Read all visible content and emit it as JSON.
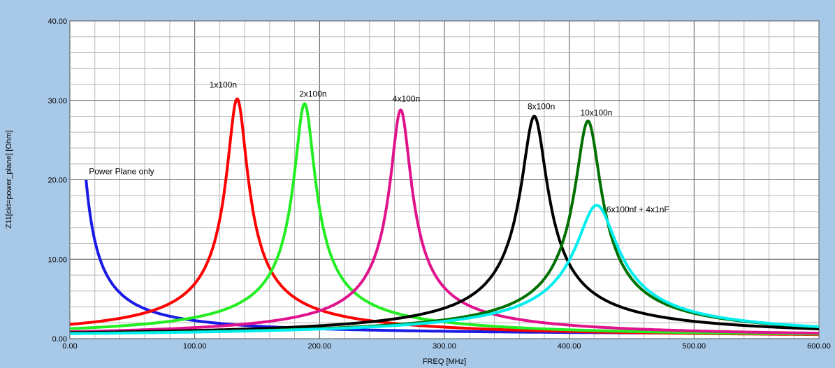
{
  "chart_data": {
    "type": "line",
    "xlabel": "FREQ [MHz]",
    "ylabel": "Z11[ckt=power_plane] [Ohm]",
    "xlim": [
      0,
      600
    ],
    "ylim": [
      0,
      40
    ],
    "grid": true,
    "x_ticks": [
      "0.00",
      "100.00",
      "200.00",
      "300.00",
      "400.00",
      "500.00",
      "600.00"
    ],
    "y_ticks": [
      "0.00",
      "10.00",
      "20.00",
      "30.00",
      "40.00"
    ],
    "series": [
      {
        "name": "Power Plane only",
        "color": "#1a1ae6",
        "kind": "plane",
        "start_x": 13,
        "peak": 20.0,
        "tail": 0.4
      },
      {
        "name": "1x100n",
        "color": "#ff0000",
        "kind": "resonance",
        "f0": 134,
        "peak": 30.2,
        "width": 8
      },
      {
        "name": "2x100n",
        "color": "#22ee22",
        "kind": "resonance",
        "f0": 188,
        "peak": 29.6,
        "width": 8
      },
      {
        "name": "4x100n",
        "color": "#e0138c",
        "kind": "resonance",
        "f0": 265,
        "peak": 28.8,
        "width": 8
      },
      {
        "name": "8x100n",
        "color": "#000000",
        "kind": "resonance",
        "f0": 372,
        "peak": 28.0,
        "width": 10
      },
      {
        "name": "10x100n",
        "color": "#007000",
        "kind": "resonance",
        "f0": 415,
        "peak": 27.4,
        "width": 10
      },
      {
        "name": "6x100nf + 4x1nF",
        "color": "#00eeee",
        "kind": "resonance",
        "f0": 422,
        "peak": 16.8,
        "width": 16
      }
    ]
  }
}
